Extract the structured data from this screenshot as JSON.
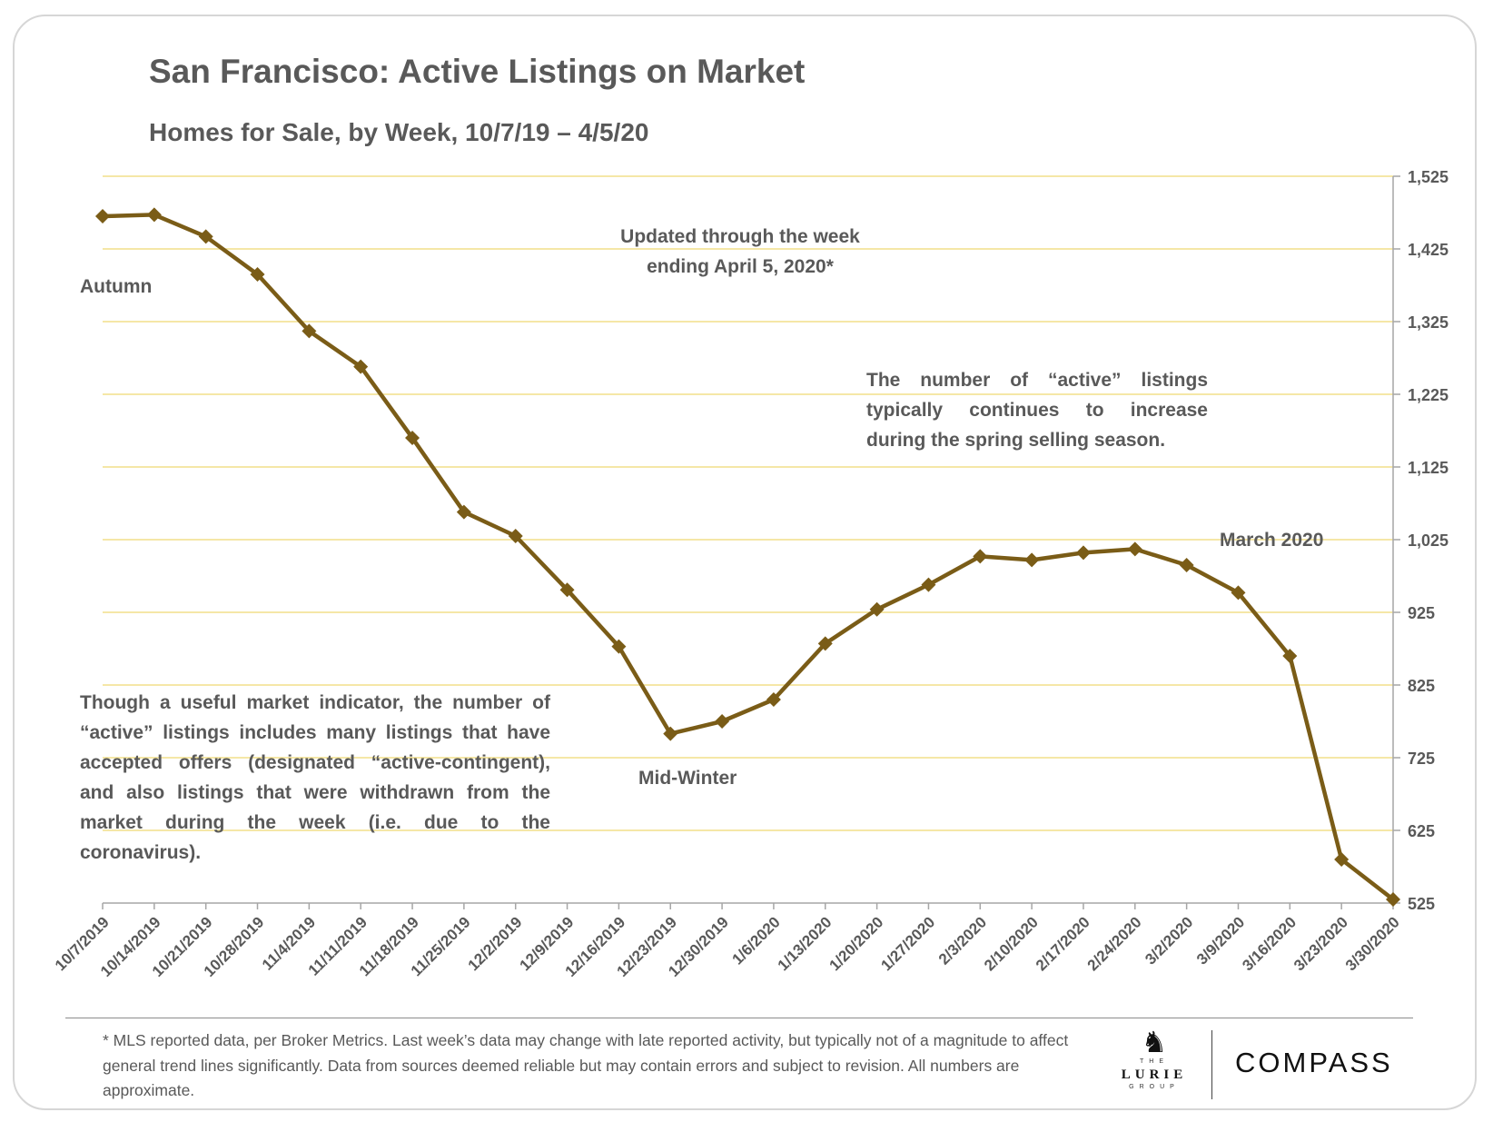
{
  "title": "San Francisco: Active Listings on Market",
  "subtitle": "Homes for Sale, by Week, 10/7/19 – 4/5/20",
  "annotations": {
    "updated_line1": "Updated through the week",
    "updated_line2": "ending April 5, 2020*",
    "autumn": "Autumn",
    "spring_note": "The number of “active” listings typically continues to increase during the spring selling season.",
    "march": "March 2020",
    "mid_winter": "Mid-Winter",
    "indicator_note": "Though a useful market indicator, the number of “active” listings includes many listings that have accepted offers (designated “active-contingent), and also listings that were withdrawn from the market during the week (i.e. due to the coronavirus)."
  },
  "footnote": "* MLS reported data, per Broker Metrics. Last week’s data may change with late reported activity, but typically not of a magnitude to affect general trend lines significantly. Data from sources deemed reliable but may contain errors and subject to revision. All numbers are approximate.",
  "branding": {
    "lurie_top": "THE",
    "lurie_name": "LURIE",
    "lurie_bottom": "GROUP",
    "compass": "COMPASS"
  },
  "colors": {
    "line": "#7a5c17",
    "grid": "#f2df8a",
    "axis": "#a6a6a6",
    "text": "#595959"
  },
  "chart_data": {
    "type": "line",
    "title": "San Francisco: Active Listings on Market",
    "subtitle": "Homes for Sale, by Week, 10/7/19 – 4/5/20",
    "xlabel": "",
    "ylabel": "",
    "y_axis_position": "right",
    "ylim": [
      525,
      1525
    ],
    "yticks": [
      "1,525",
      "1,425",
      "1,325",
      "1,225",
      "1,125",
      "1,025",
      "925",
      "825",
      "725",
      "625",
      "525"
    ],
    "ytick_values": [
      1525,
      1425,
      1325,
      1225,
      1125,
      1025,
      925,
      825,
      725,
      625,
      525
    ],
    "grid": true,
    "categories": [
      "10/7/2019",
      "10/14/2019",
      "10/21/2019",
      "10/28/2019",
      "11/4/2019",
      "11/11/2019",
      "11/18/2019",
      "11/25/2019",
      "12/2/2019",
      "12/9/2019",
      "12/16/2019",
      "12/23/2019",
      "12/30/2019",
      "1/6/2020",
      "1/13/2020",
      "1/20/2020",
      "1/27/2020",
      "2/3/2020",
      "2/10/2020",
      "2/17/2020",
      "2/24/2020",
      "3/2/2020",
      "3/9/2020",
      "3/16/2020",
      "3/23/2020",
      "3/30/2020"
    ],
    "values": [
      1470,
      1472,
      1442,
      1390,
      1312,
      1263,
      1165,
      1063,
      1030,
      956,
      878,
      758,
      775,
      805,
      882,
      929,
      963,
      1002,
      997,
      1007,
      1012,
      990,
      952,
      865,
      585,
      530
    ]
  }
}
